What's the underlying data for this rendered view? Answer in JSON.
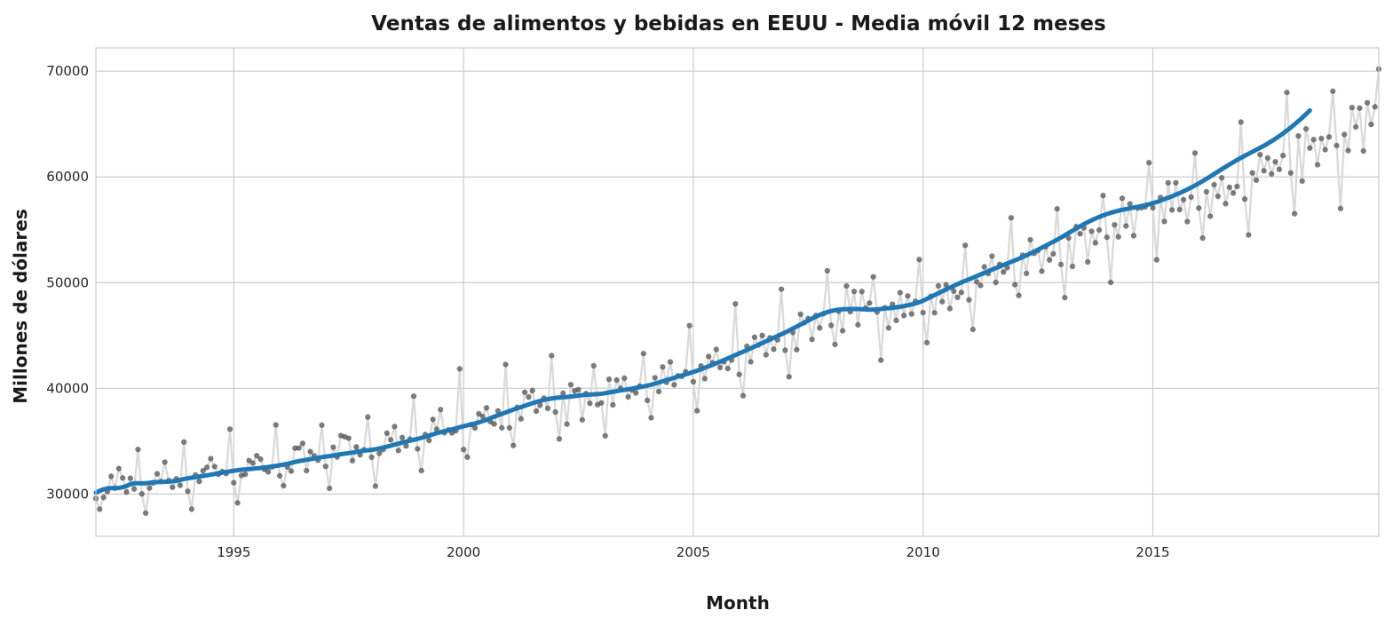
{
  "chart_data": {
    "type": "line",
    "title": "Ventas de alimentos y bebidas en EEUU - Media móvil 12 meses",
    "xlabel": "Month",
    "ylabel": "Millones de dólares",
    "xlim": [
      "1992-01",
      "2019-12"
    ],
    "ylim": [
      26000,
      72200
    ],
    "x_ticks": [
      {
        "value": "1995-01",
        "label": "1995"
      },
      {
        "value": "2000-01",
        "label": "2000"
      },
      {
        "value": "2005-01",
        "label": "2005"
      },
      {
        "value": "2010-01",
        "label": "2010"
      },
      {
        "value": "2015-01",
        "label": "2015"
      }
    ],
    "y_ticks": [
      {
        "value": 30000,
        "label": "30000"
      },
      {
        "value": 40000,
        "label": "40000"
      },
      {
        "value": 50000,
        "label": "50000"
      },
      {
        "value": 60000,
        "label": "60000"
      },
      {
        "value": 70000,
        "label": "70000"
      }
    ],
    "grid": true,
    "start_month": "1992-01",
    "frequency": "monthly",
    "series": [
      {
        "role": "monthly-sales-points",
        "color": "#555555",
        "line_color": "#d9d9d9",
        "values": [
          29589,
          28570,
          29682,
          30228,
          31677,
          30555,
          32411,
          31524,
          30184,
          31499,
          30482,
          34217,
          30013,
          28195,
          30573,
          31059,
          31922,
          31184,
          33023,
          31276,
          30639,
          31434,
          30830,
          34917,
          30263,
          28569,
          31807,
          31192,
          32208,
          32525,
          33351,
          32601,
          31863,
          32129,
          31934,
          36136,
          31069,
          29163,
          31766,
          31870,
          33172,
          32925,
          33627,
          33302,
          32337,
          32089,
          32571,
          36540,
          31727,
          30781,
          32571,
          32169,
          34341,
          34352,
          34795,
          32213,
          34017,
          33621,
          33202,
          36517,
          32616,
          30537,
          34427,
          33504,
          35535,
          35414,
          35282,
          33154,
          34460,
          33713,
          34191,
          37281,
          33487,
          30748,
          33850,
          34204,
          35760,
          35125,
          36387,
          34111,
          35347,
          34549,
          35195,
          39262,
          34267,
          32219,
          35629,
          35071,
          37062,
          36124,
          37988,
          35792,
          36066,
          35780,
          35993,
          41847,
          34213,
          33489,
          36572,
          36247,
          37592,
          37335,
          38156,
          36844,
          36618,
          37856,
          36261,
          42256,
          36265,
          34598,
          38208,
          37111,
          39627,
          39173,
          39790,
          37837,
          38403,
          39077,
          38106,
          43099,
          37759,
          35210,
          39539,
          36610,
          40354,
          39753,
          39882,
          37025,
          39500,
          38579,
          42138,
          38454,
          38627,
          35503,
          40859,
          38434,
          40792,
          39990,
          40961,
          39188,
          39846,
          39563,
          40218,
          43288,
          38864,
          37209,
          41005,
          39695,
          42022,
          40572,
          42502,
          40330,
          41185,
          41131,
          41578,
          45932,
          40627,
          37878,
          42124,
          40911,
          43020,
          42419,
          43685,
          41966,
          42521,
          41869,
          42676,
          47994,
          41315,
          39301,
          43978,
          42506,
          44838,
          44093,
          45003,
          43173,
          44782,
          43693,
          44588,
          49384,
          43600,
          41095,
          45284,
          43654,
          47011,
          46211,
          46603,
          44627,
          46891,
          45718,
          47057,
          51127,
          45953,
          44151,
          47289,
          45440,
          49683,
          47246,
          49170,
          46008,
          49164,
          47589,
          48060,
          50549,
          47230,
          42658,
          47622,
          45714,
          47965,
          46424,
          49055,
          46887,
          48740,
          47032,
          48235,
          52184,
          47166,
          44316,
          48703,
          47146,
          49702,
          48190,
          49785,
          47548,
          49209,
          48601,
          49070,
          53530,
          48373,
          45572,
          50087,
          49732,
          51498,
          50855,
          52508,
          50013,
          51731,
          51002,
          51416,
          56136,
          49806,
          48785,
          52589,
          50874,
          54054,
          52771,
          53036,
          51080,
          53389,
          52147,
          52722,
          56983,
          51718,
          48583,
          54223,
          51534,
          55302,
          54623,
          55193,
          51953,
          54859,
          53764,
          54981,
          58238,
          54290,
          50017,
          55472,
          54331,
          57977,
          55361,
          57450,
          54443,
          57065,
          57092,
          57168,
          61346,
          57083,
          52158,
          58060,
          55789,
          59438,
          56878,
          59442,
          56911,
          57848,
          55773,
          58095,
          62264,
          57054,
          54219,
          58599,
          56281,
          59269,
          58167,
          59919,
          57462,
          59017,
          58470,
          59096,
          65189,
          57901,
          54513,
          60387,
          59694,
          62115,
          60581,
          61788,
          60283,
          61434,
          60713,
          62024,
          67995,
          60377,
          56517,
          63876,
          59611,
          64540,
          62726,
          63531,
          61155,
          63640,
          62583,
          63779,
          68107,
          62964,
          57013,
          64021,
          62495,
          66562,
          64723,
          66514,
          62451,
          67022,
          64966,
          66629,
          70210
        ]
      },
      {
        "role": "moving-average-12m",
        "color": "#1f77b4",
        "values": [
          30128,
          30304,
          30445,
          30525,
          30559,
          30561,
          30579,
          30645,
          30768,
          30926,
          31014,
          31024,
          31012,
          31016,
          31066,
          31115,
          31136,
          31142,
          31152,
          31171,
          31204,
          31250,
          31331,
          31422,
          31489,
          31542,
          31600,
          31662,
          31714,
          31772,
          31832,
          31897,
          31963,
          32026,
          32087,
          32149,
          32208,
          32259,
          32298,
          32329,
          32359,
          32393,
          32430,
          32470,
          32510,
          32553,
          32603,
          32658,
          32719,
          32783,
          32855,
          32943,
          33034,
          33108,
          33175,
          33241,
          33301,
          33364,
          33427,
          33484,
          33538,
          33590,
          33646,
          33710,
          33770,
          33821,
          33869,
          33922,
          33984,
          34045,
          34100,
          34140,
          34179,
          34235,
          34309,
          34391,
          34480,
          34580,
          34679,
          34774,
          34865,
          34956,
          35048,
          35133,
          35219,
          35313,
          35419,
          35530,
          35643,
          35754,
          35853,
          35941,
          36028,
          36117,
          36214,
          36315,
          36413,
          36502,
          36587,
          36676,
          36780,
          36896,
          37024,
          37166,
          37314,
          37451,
          37580,
          37714,
          37853,
          37986,
          38109,
          38224,
          38344,
          38472,
          38595,
          38708,
          38810,
          38900,
          38980,
          39043,
          39090,
          39124,
          39152,
          39182,
          39218,
          39262,
          39311,
          39354,
          39384,
          39406,
          39425,
          39448,
          39486,
          39542,
          39606,
          39673,
          39738,
          39800,
          39860,
          39914,
          39972,
          40037,
          40106,
          40177,
          40255,
          40343,
          40446,
          40556,
          40668,
          40778,
          40887,
          40997,
          41106,
          41215,
          41320,
          41431,
          41548,
          41670,
          41803,
          41942,
          42083,
          42224,
          42369,
          42518,
          42671,
          42830,
          42991,
          43153,
          43307,
          43461,
          43620,
          43783,
          43948,
          44115,
          44282,
          44446,
          44611,
          44778,
          44947,
          45116,
          45289,
          45469,
          45654,
          45839,
          46028,
          46219,
          46408,
          46597,
          46776,
          46942,
          47090,
          47213,
          47313,
          47390,
          47446,
          47480,
          47495,
          47504,
          47509,
          47501,
          47483,
          47457,
          47441,
          47448,
          47471,
          47504,
          47541,
          47579,
          47619,
          47662,
          47714,
          47782,
          47860,
          47941,
          48034,
          48150,
          48292,
          48459,
          48640,
          48822,
          48997,
          49172,
          49349,
          49521,
          49692,
          49859,
          50016,
          50166,
          50313,
          50463,
          50617,
          50773,
          50926,
          51075,
          51223,
          51370,
          51519,
          51666,
          51814,
          51961,
          52108,
          52258,
          52416,
          52581,
          52754,
          52932,
          53115,
          53306,
          53497,
          53683,
          53869,
          54059,
          54257,
          54470,
          54691,
          54909,
          55119,
          55325,
          55527,
          55719,
          55897,
          56062,
          56213,
          56355,
          56485,
          56604,
          56709,
          56800,
          56882,
          56958,
          57030,
          57100,
          57169,
          57242,
          57324,
          57416,
          57518,
          57630,
          57753,
          57886,
          58026,
          58170,
          58318,
          58474,
          58639,
          58813,
          58996,
          59188,
          59390,
          59601,
          59820,
          60045,
          60273,
          60503,
          60732,
          60958,
          61178,
          61392,
          61599,
          61801,
          61997,
          62190,
          62379,
          62565,
          62754,
          62949,
          63156,
          63376,
          63608,
          63854,
          64113,
          64386,
          64671,
          64969,
          65278,
          65600,
          65937,
          66290
        ]
      }
    ]
  }
}
